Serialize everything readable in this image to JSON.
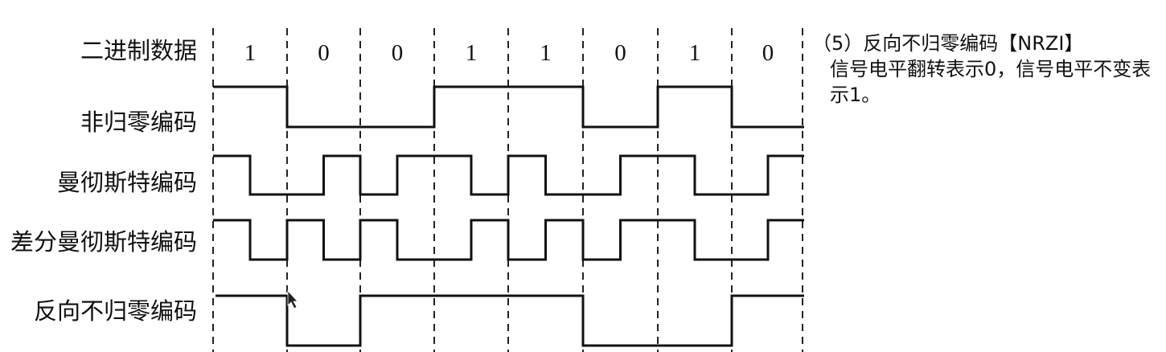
{
  "bits": [
    "1",
    "0",
    "0",
    "1",
    "1",
    "0",
    "1",
    "0"
  ],
  "row_labels": {
    "binary": "二进制数据",
    "nrz": "非归零编码",
    "manchester": "曼彻斯特编码",
    "diff_manchester": "差分曼彻斯特编码",
    "nrzi": "反向不归零编码"
  },
  "note": {
    "title": "（5）反向不归零编码【NRZI】",
    "body": "信号电平翻转表示0，信号电平不变表示1。"
  },
  "encodings": {
    "nrz_levels": [
      1,
      0,
      0,
      1,
      1,
      0,
      1,
      0
    ],
    "manchester_halves": [
      [
        1,
        0
      ],
      [
        0,
        1
      ],
      [
        0,
        1
      ],
      [
        1,
        0
      ],
      [
        1,
        0
      ],
      [
        0,
        1
      ],
      [
        1,
        0
      ],
      [
        0,
        1
      ]
    ],
    "diff_manchester_halves": [
      [
        1,
        0
      ],
      [
        1,
        0
      ],
      [
        1,
        0
      ],
      [
        0,
        1
      ],
      [
        0,
        1
      ],
      [
        0,
        1
      ],
      [
        1,
        0
      ],
      [
        0,
        1
      ]
    ],
    "nrzi_levels": [
      1,
      0,
      1,
      1,
      1,
      0,
      0,
      1
    ]
  }
}
